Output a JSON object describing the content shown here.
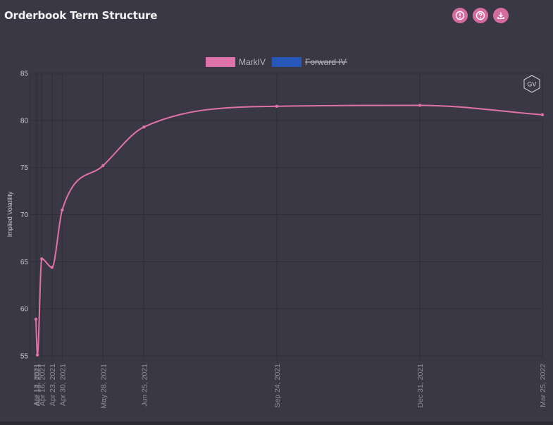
{
  "header": {
    "title": "Orderbook Term Structure",
    "icons": [
      "info-icon",
      "help-icon",
      "download-icon"
    ]
  },
  "colors": {
    "background": "#393844",
    "accent": "#d56c9f",
    "markiv_line": "#df72a8",
    "forward_iv": "#2757b8",
    "grid": "#2f2e37"
  },
  "watermark": {
    "text": "GV"
  },
  "chart_data": {
    "type": "line",
    "ylabel": "Implied Volatility",
    "xlabel": "",
    "ylim": [
      55,
      85
    ],
    "yticks": [
      55,
      60,
      65,
      70,
      75,
      80,
      85
    ],
    "x_axis_type": "date",
    "xlim": [
      "2021-04-12",
      "2022-03-25"
    ],
    "legend_position": "top-center",
    "series": [
      {
        "name": "MarkIV",
        "color": "#df72a8",
        "hidden": false,
        "points": [
          {
            "x": "2021-04-12",
            "label": "Apr 12, 2021",
            "y": 58.9
          },
          {
            "x": "2021-04-13",
            "label": "Apr 13, 2021",
            "y": 55.1
          },
          {
            "x": "2021-04-16",
            "label": "Apr 16, 2021",
            "y": 65.3
          },
          {
            "x": "2021-04-23",
            "label": "Apr 23, 2021",
            "y": 64.4
          },
          {
            "x": "2021-04-30",
            "label": "Apr 30, 2021",
            "y": 70.5
          },
          {
            "x": "2021-05-28",
            "label": "May 28, 2021",
            "y": 75.2
          },
          {
            "x": "2021-06-25",
            "label": "Jun 25, 2021",
            "y": 79.3
          },
          {
            "x": "2021-09-24",
            "label": "Sep 24, 2021",
            "y": 81.5
          },
          {
            "x": "2021-12-31",
            "label": "Dec 31, 2021",
            "y": 81.6
          },
          {
            "x": "2022-03-25",
            "label": "Mar 25, 2022",
            "y": 80.6
          }
        ]
      },
      {
        "name": "Forward IV",
        "color": "#2757b8",
        "hidden": true,
        "points": []
      }
    ]
  }
}
